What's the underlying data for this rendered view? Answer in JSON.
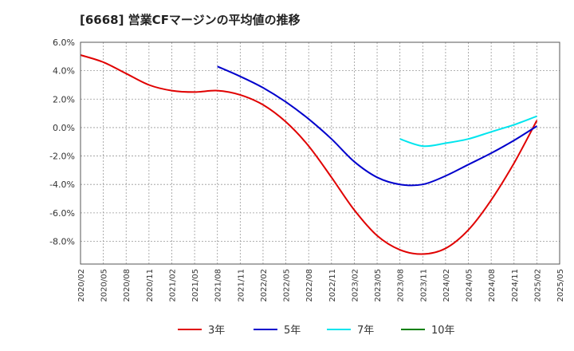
{
  "title": "[6668]  営業CFマージンの平均値の推移",
  "chart_data": {
    "type": "line",
    "title": "[6668]  営業CFマージンの平均値の推移",
    "xlabel": "",
    "ylabel": "",
    "ylim": [
      -9.6,
      6.0
    ],
    "yticks": [
      6.0,
      4.0,
      2.0,
      0.0,
      -2.0,
      -4.0,
      -6.0,
      -8.0
    ],
    "ytick_labels": [
      "6.0%",
      "4.0%",
      "2.0%",
      "0.0%",
      "-2.0%",
      "-4.0%",
      "-6.0%",
      "-8.0%"
    ],
    "xticks": [
      "2020/02",
      "2020/05",
      "2020/08",
      "2020/11",
      "2021/02",
      "2021/05",
      "2021/08",
      "2021/11",
      "2022/02",
      "2022/05",
      "2022/08",
      "2022/11",
      "2023/02",
      "2023/05",
      "2023/08",
      "2023/11",
      "2024/02",
      "2024/05",
      "2024/08",
      "2024/11",
      "2025/02",
      "2025/05"
    ],
    "grid": true,
    "legend_position": "bottom",
    "series": [
      {
        "name": "3年",
        "color": "#e00000",
        "x": [
          "2020/02",
          "2020/05",
          "2020/08",
          "2020/11",
          "2021/02",
          "2021/05",
          "2021/08",
          "2021/11",
          "2022/02",
          "2022/05",
          "2022/08",
          "2022/11",
          "2023/02",
          "2023/05",
          "2023/08",
          "2023/11",
          "2024/02",
          "2024/05",
          "2024/08",
          "2024/11",
          "2025/02"
        ],
        "values": [
          5.1,
          4.6,
          3.8,
          3.0,
          2.6,
          2.5,
          2.6,
          2.3,
          1.6,
          0.4,
          -1.3,
          -3.5,
          -5.8,
          -7.6,
          -8.6,
          -8.9,
          -8.5,
          -7.2,
          -5.1,
          -2.5,
          0.5
        ]
      },
      {
        "name": "5年",
        "color": "#0000cc",
        "x": [
          "2021/08",
          "2021/11",
          "2022/02",
          "2022/05",
          "2022/08",
          "2022/11",
          "2023/02",
          "2023/05",
          "2023/08",
          "2023/11",
          "2024/02",
          "2024/05",
          "2024/08",
          "2024/11",
          "2025/02"
        ],
        "values": [
          4.3,
          3.6,
          2.8,
          1.8,
          0.6,
          -0.8,
          -2.4,
          -3.5,
          -4.0,
          -4.0,
          -3.4,
          -2.6,
          -1.8,
          -0.9,
          0.1
        ]
      },
      {
        "name": "7年",
        "color": "#00e5ee",
        "x": [
          "2023/08",
          "2023/11",
          "2024/02",
          "2024/05",
          "2024/08",
          "2024/11",
          "2025/02"
        ],
        "values": [
          -0.8,
          -1.3,
          -1.1,
          -0.8,
          -0.3,
          0.2,
          0.8
        ]
      },
      {
        "name": "10年",
        "color": "#008000",
        "x": [],
        "values": []
      }
    ]
  }
}
